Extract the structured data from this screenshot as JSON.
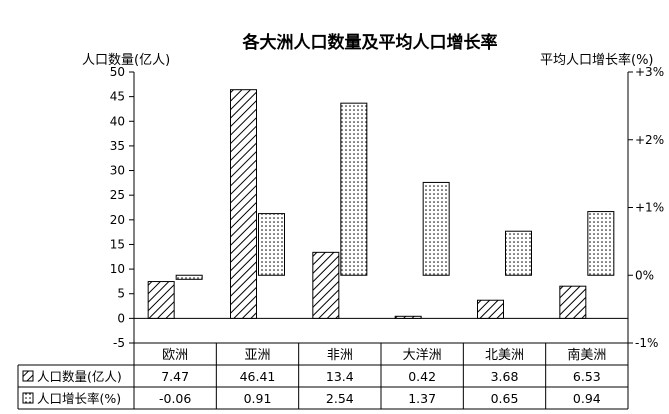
{
  "chart_data": {
    "type": "bar",
    "title": "各大洲人口数量及平均人口增长率",
    "ylabel_left": "人口数量(亿人)",
    "ylabel_right": "平均人口增长率(%)",
    "categories": [
      "欧洲",
      "亚洲",
      "非洲",
      "大洋洲",
      "北美洲",
      "南美洲"
    ],
    "y_left": {
      "lim": [
        -5,
        50
      ],
      "ticks": [
        "50",
        "45",
        "40",
        "35",
        "30",
        "25",
        "20",
        "15",
        "10",
        "5",
        "0",
        "-5"
      ]
    },
    "y_right": {
      "lim": [
        -1,
        3
      ],
      "ticks": [
        "+3%",
        "+2%",
        "+1%",
        "0%",
        "-1%"
      ]
    },
    "series": [
      {
        "name": "人口数量(亿人)",
        "axis": "left",
        "pattern": "hatch",
        "values": [
          7.47,
          46.41,
          13.4,
          0.42,
          3.68,
          6.53
        ],
        "labels": [
          "7.47",
          "46.41",
          "13.4",
          "0.42",
          "3.68",
          "6.53"
        ]
      },
      {
        "name": "人口增长率(%)",
        "axis": "right",
        "pattern": "dots",
        "values": [
          -0.06,
          0.91,
          2.54,
          1.37,
          0.65,
          0.94
        ],
        "labels": [
          "-0.06",
          "0.91",
          "2.54",
          "1.37",
          "0.65",
          "0.94"
        ]
      }
    ],
    "grid": false,
    "legend": "data-table-below"
  }
}
